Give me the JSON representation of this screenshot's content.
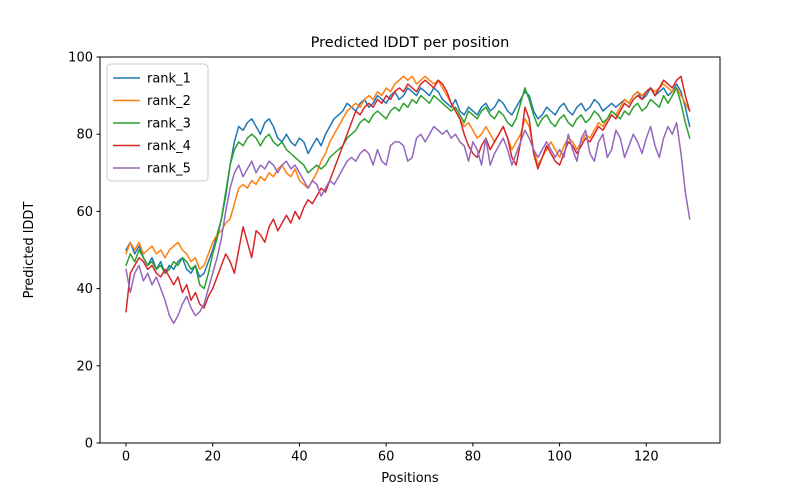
{
  "figure": {
    "background": "#ffffff",
    "spine_color": "#000000"
  },
  "chart_data": {
    "type": "line",
    "title": "Predicted lDDT per position",
    "xlabel": "Positions",
    "ylabel": "Predicted lDDT",
    "xlim": [
      -6,
      137
    ],
    "ylim": [
      0,
      100
    ],
    "x_ticks": [
      0,
      20,
      40,
      60,
      80,
      100,
      120
    ],
    "y_ticks": [
      0,
      20,
      40,
      60,
      80,
      100
    ],
    "grid": false,
    "legend_position": "upper left",
    "x_start": 0,
    "x_step": 1,
    "series": [
      {
        "name": "rank_1",
        "color": "#1f77b4",
        "values": [
          50,
          52,
          49,
          51,
          48,
          46,
          48,
          45,
          47,
          44,
          46,
          45,
          47,
          48,
          45,
          44,
          46,
          43,
          44,
          47,
          50,
          54,
          58,
          64,
          72,
          78,
          82,
          81,
          83,
          84,
          82,
          80,
          83,
          84,
          82,
          79,
          78,
          80,
          78,
          77,
          79,
          78,
          75,
          77,
          79,
          77,
          80,
          82,
          84,
          85,
          86,
          88,
          87,
          86,
          88,
          89,
          87,
          88,
          90,
          89,
          88,
          90,
          91,
          89,
          90,
          92,
          91,
          90,
          92,
          91,
          90,
          92,
          91,
          89,
          88,
          87,
          89,
          86,
          85,
          87,
          86,
          85,
          87,
          88,
          86,
          87,
          89,
          88,
          86,
          85,
          87,
          89,
          91,
          90,
          86,
          84,
          85,
          87,
          86,
          85,
          87,
          88,
          86,
          85,
          87,
          88,
          86,
          87,
          89,
          88,
          86,
          87,
          88,
          87,
          88,
          89,
          88,
          90,
          91,
          89,
          90,
          92,
          90,
          91,
          92,
          90,
          91,
          93,
          91,
          87,
          82
        ]
      },
      {
        "name": "rank_2",
        "color": "#ff7f0e",
        "values": [
          49,
          52,
          50,
          52,
          49,
          50,
          51,
          49,
          50,
          48,
          50,
          51,
          52,
          50,
          49,
          47,
          48,
          45,
          46,
          49,
          52,
          54,
          55,
          57,
          58,
          62,
          66,
          67,
          66,
          68,
          67,
          69,
          68,
          70,
          69,
          71,
          72,
          70,
          69,
          71,
          68,
          67,
          66,
          68,
          70,
          73,
          75,
          78,
          80,
          82,
          84,
          86,
          87,
          88,
          87,
          89,
          90,
          89,
          91,
          90,
          92,
          91,
          93,
          94,
          95,
          94,
          95,
          93,
          94,
          95,
          94,
          93,
          94,
          92,
          90,
          88,
          86,
          84,
          82,
          83,
          81,
          79,
          80,
          82,
          80,
          78,
          80,
          82,
          79,
          76,
          78,
          80,
          84,
          82,
          76,
          72,
          74,
          76,
          78,
          76,
          74,
          77,
          79,
          78,
          76,
          78,
          80,
          79,
          81,
          83,
          82,
          84,
          86,
          85,
          87,
          89,
          88,
          90,
          91,
          90,
          91,
          92,
          91,
          92,
          93,
          92,
          91,
          92,
          90,
          88,
          86
        ]
      },
      {
        "name": "rank_3",
        "color": "#2ca02c",
        "values": [
          46,
          49,
          47,
          50,
          48,
          46,
          47,
          45,
          46,
          44,
          45,
          47,
          46,
          48,
          47,
          45,
          46,
          41,
          40,
          44,
          49,
          53,
          58,
          65,
          72,
          76,
          78,
          77,
          79,
          80,
          79,
          77,
          79,
          80,
          78,
          77,
          78,
          76,
          75,
          74,
          73,
          72,
          70,
          71,
          72,
          71,
          72,
          74,
          75,
          76,
          77,
          79,
          80,
          81,
          83,
          84,
          83,
          85,
          86,
          85,
          84,
          86,
          87,
          86,
          88,
          87,
          89,
          88,
          90,
          89,
          88,
          90,
          89,
          88,
          87,
          86,
          87,
          85,
          83,
          86,
          85,
          84,
          86,
          87,
          85,
          84,
          86,
          85,
          83,
          82,
          84,
          88,
          92,
          89,
          85,
          82,
          84,
          85,
          83,
          82,
          84,
          85,
          83,
          82,
          84,
          85,
          83,
          84,
          86,
          85,
          83,
          84,
          86,
          85,
          84,
          86,
          85,
          87,
          88,
          86,
          87,
          89,
          88,
          87,
          90,
          88,
          90,
          92,
          88,
          83,
          79
        ]
      },
      {
        "name": "rank_4",
        "color": "#d62728",
        "values": [
          34,
          44,
          46,
          48,
          47,
          45,
          46,
          44,
          43,
          45,
          43,
          41,
          43,
          39,
          41,
          37,
          39,
          36,
          35,
          38,
          40,
          43,
          46,
          49,
          47,
          44,
          50,
          56,
          52,
          48,
          55,
          54,
          52,
          56,
          58,
          55,
          57,
          59,
          57,
          60,
          58,
          61,
          63,
          62,
          64,
          66,
          65,
          68,
          71,
          74,
          77,
          80,
          83,
          86,
          85,
          87,
          88,
          87,
          89,
          88,
          90,
          89,
          91,
          92,
          91,
          93,
          92,
          91,
          93,
          94,
          93,
          92,
          94,
          93,
          91,
          88,
          86,
          84,
          80,
          77,
          75,
          74,
          77,
          79,
          76,
          78,
          80,
          82,
          79,
          74,
          72,
          78,
          87,
          84,
          75,
          71,
          74,
          77,
          75,
          73,
          72,
          75,
          78,
          77,
          75,
          77,
          79,
          78,
          80,
          82,
          81,
          83,
          85,
          84,
          86,
          88,
          87,
          89,
          90,
          89,
          91,
          92,
          90,
          92,
          94,
          93,
          92,
          94,
          95,
          90,
          86
        ]
      },
      {
        "name": "rank_5",
        "color": "#9467bd",
        "values": [
          45,
          39,
          44,
          46,
          42,
          44,
          41,
          43,
          40,
          37,
          33,
          31,
          33,
          36,
          38,
          35,
          33,
          34,
          36,
          40,
          44,
          48,
          53,
          60,
          66,
          70,
          72,
          69,
          71,
          73,
          70,
          72,
          71,
          73,
          72,
          70,
          72,
          73,
          71,
          72,
          70,
          68,
          66,
          68,
          67,
          64,
          66,
          68,
          67,
          69,
          71,
          73,
          74,
          73,
          75,
          76,
          75,
          72,
          76,
          73,
          72,
          77,
          78,
          78,
          77,
          73,
          74,
          79,
          80,
          78,
          80,
          82,
          81,
          80,
          81,
          79,
          80,
          78,
          77,
          73,
          78,
          76,
          72,
          79,
          72,
          75,
          77,
          79,
          76,
          72,
          75,
          78,
          81,
          79,
          76,
          74,
          76,
          78,
          76,
          74,
          76,
          74,
          80,
          76,
          73,
          79,
          81,
          75,
          73,
          78,
          80,
          74,
          76,
          81,
          79,
          74,
          77,
          80,
          78,
          75,
          79,
          82,
          77,
          74,
          79,
          82,
          80,
          83,
          75,
          65,
          58
        ]
      }
    ]
  }
}
